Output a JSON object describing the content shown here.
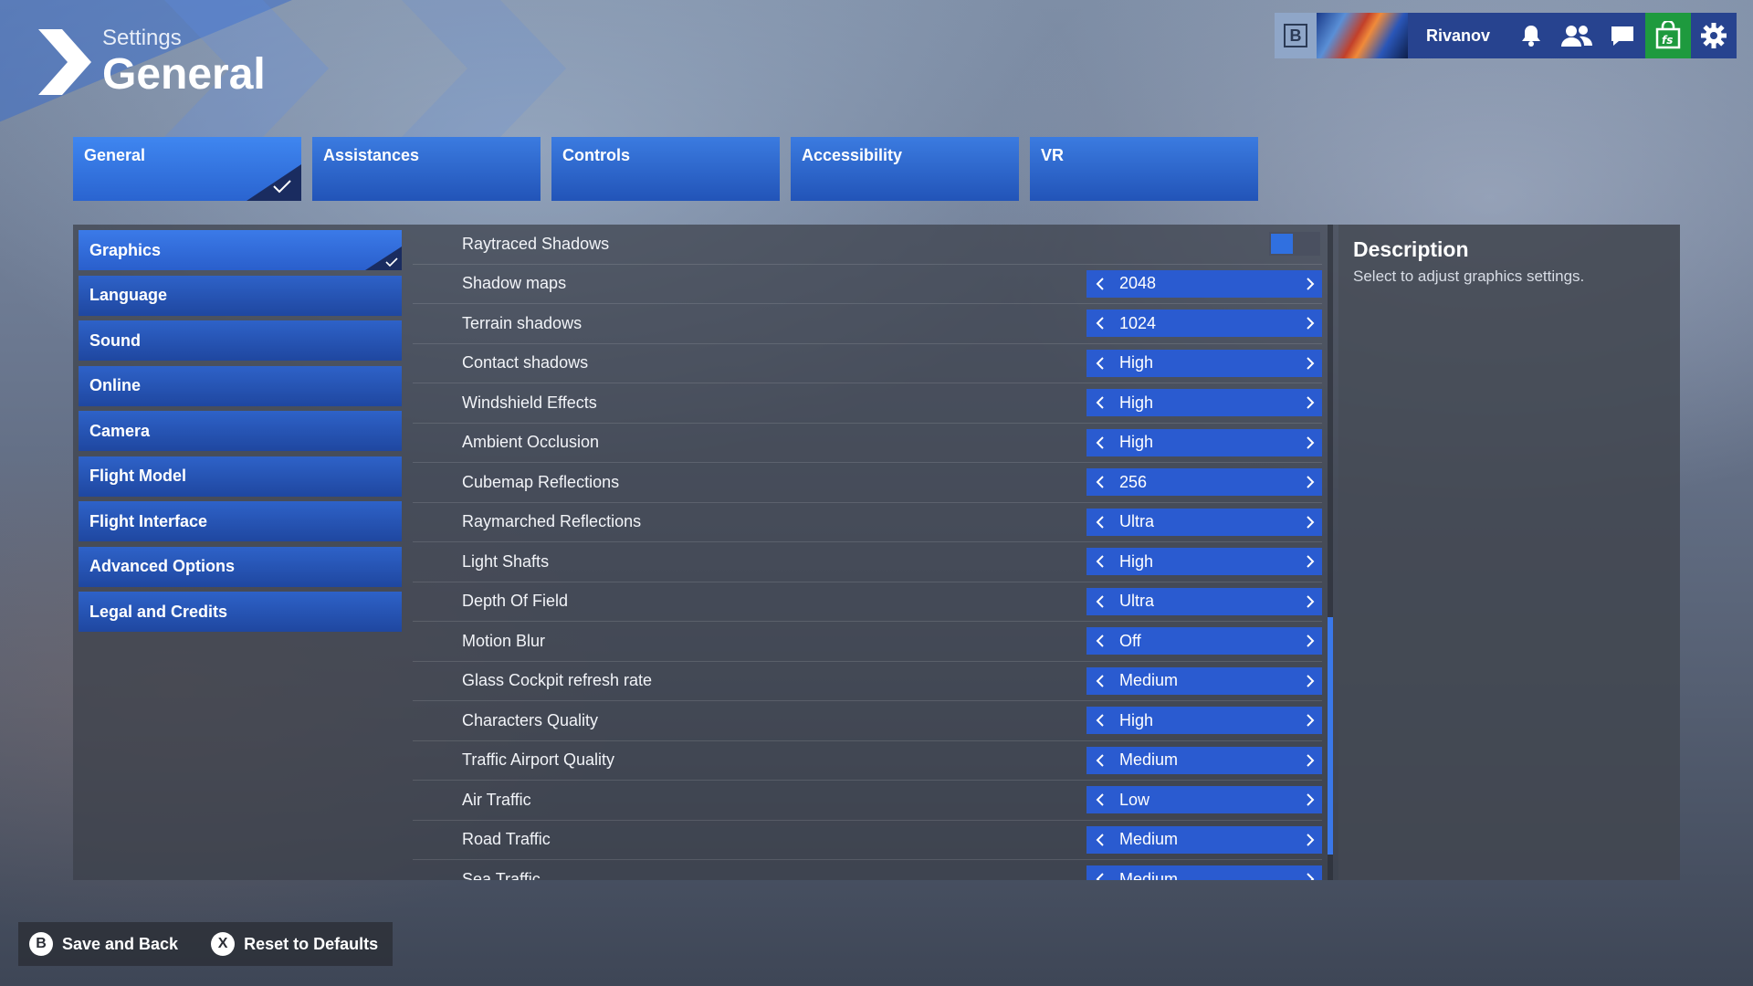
{
  "header": {
    "subtitle": "Settings",
    "title": "General"
  },
  "topbar": {
    "b_label": "B",
    "username": "Rivanov",
    "icons": [
      "bell-icon",
      "friends-icon",
      "chat-icon",
      "store-icon",
      "gear-icon"
    ],
    "store_label": "fs"
  },
  "tabs": [
    {
      "label": "General",
      "active": true
    },
    {
      "label": "Assistances"
    },
    {
      "label": "Controls"
    },
    {
      "label": "Accessibility"
    },
    {
      "label": "VR"
    }
  ],
  "sidebar": [
    {
      "label": "Graphics",
      "active": true
    },
    {
      "label": "Language"
    },
    {
      "label": "Sound"
    },
    {
      "label": "Online"
    },
    {
      "label": "Camera"
    },
    {
      "label": "Flight Model"
    },
    {
      "label": "Flight Interface"
    },
    {
      "label": "Advanced Options"
    },
    {
      "label": "Legal and Credits"
    }
  ],
  "settings": {
    "raytraced": {
      "label": "Raytraced Shadows"
    },
    "rows": [
      {
        "label": "Shadow maps",
        "value": "2048"
      },
      {
        "label": "Terrain shadows",
        "value": "1024"
      },
      {
        "label": "Contact shadows",
        "value": "High"
      },
      {
        "label": "Windshield Effects",
        "value": "High"
      },
      {
        "label": "Ambient Occlusion",
        "value": "High"
      },
      {
        "label": "Cubemap Reflections",
        "value": "256"
      },
      {
        "label": "Raymarched Reflections",
        "value": "Ultra"
      },
      {
        "label": "Light Shafts",
        "value": "High"
      },
      {
        "label": "Depth Of Field",
        "value": "Ultra"
      },
      {
        "label": "Motion Blur",
        "value": "Off"
      },
      {
        "label": "Glass Cockpit refresh rate",
        "value": "Medium"
      },
      {
        "label": "Characters Quality",
        "value": "High"
      },
      {
        "label": "Traffic Airport Quality",
        "value": "Medium"
      },
      {
        "label": "Air Traffic",
        "value": "Low"
      },
      {
        "label": "Road Traffic",
        "value": "Medium"
      },
      {
        "label": "Sea Traffic",
        "value": "Medium"
      }
    ]
  },
  "description": {
    "title": "Description",
    "text": "Select to adjust graphics settings."
  },
  "bottom": {
    "save_key": "B",
    "save_label": "Save and Back",
    "reset_key": "X",
    "reset_label": "Reset to Defaults"
  },
  "colors": {
    "accent": "#2a5bd0",
    "store": "#1e9a3e"
  }
}
